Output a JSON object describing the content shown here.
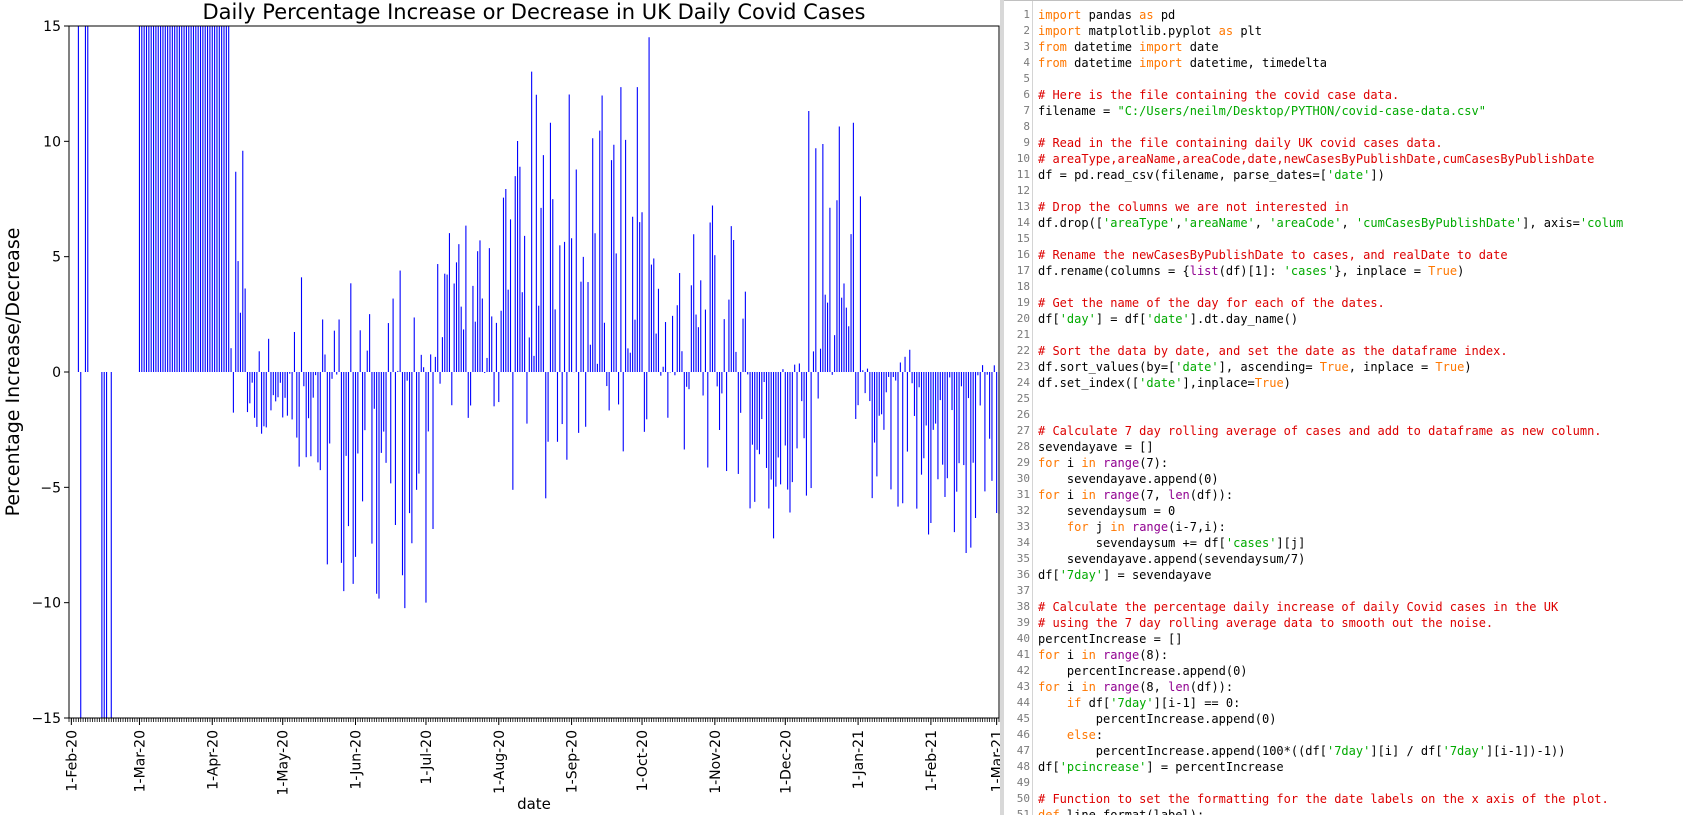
{
  "plot_window": {
    "chart_data": {
      "type": "bar",
      "title": "Daily Percentage Increase or Decrease in UK Daily Covid Cases",
      "xlabel": "date",
      "ylabel": "Percentage Increase/Decrease",
      "ylim": [
        -15,
        15
      ],
      "yticks": [
        -15,
        -10,
        -5,
        0,
        5,
        10,
        15
      ],
      "ytick_labels": [
        "−15",
        "−10",
        "−5",
        "0",
        "5",
        "10",
        "15"
      ],
      "xtick_labels": [
        "1-Feb-20",
        "1-Mar-20",
        "1-Apr-20",
        "1-May-20",
        "1-Jun-20",
        "1-Jul-20",
        "1-Aug-20",
        "1-Sep-20",
        "1-Oct-20",
        "1-Nov-20",
        "1-Dec-20",
        "1-Jan-21",
        "1-Feb-21",
        "1-Mar-21"
      ],
      "grid": false,
      "bar_color": "#0000ff",
      "date_start": "2020-01-31",
      "date_end": "2021-03-02",
      "spikes": [
        {
          "date": "2020-02-04",
          "value": 15
        },
        {
          "date": "2020-02-05",
          "value": -15
        },
        {
          "date": "2020-02-07",
          "value": 15
        },
        {
          "date": "2020-02-08",
          "value": 15
        },
        {
          "date": "2020-02-14",
          "value": -15
        },
        {
          "date": "2020-02-15",
          "value": -15
        },
        {
          "date": "2020-02-16",
          "value": -15
        },
        {
          "date": "2020-02-18",
          "value": -15
        }
      ],
      "segments": [
        {
          "start": "2020-02-20",
          "end": "2020-02-29",
          "amp": 0,
          "base": 0,
          "amp_alt": 0
        },
        {
          "start": "2020-03-01",
          "end": "2020-04-08",
          "amp": 15,
          "base": 15,
          "amp_alt": 0
        },
        {
          "start": "2020-04-09",
          "end": "2020-04-15",
          "amp": 10,
          "base": 4,
          "amp_alt": 0
        },
        {
          "start": "2020-04-16",
          "end": "2020-05-05",
          "amp": 3,
          "base": -0.5,
          "amp_alt": 1.5
        },
        {
          "start": "2020-05-06",
          "end": "2020-05-15",
          "amp": 6,
          "base": 0,
          "amp_alt": 2
        },
        {
          "start": "2020-05-16",
          "end": "2020-07-05",
          "amp": 9,
          "base": -3.5,
          "amp_alt": 1.5
        },
        {
          "start": "2020-07-06",
          "end": "2020-07-31",
          "amp": 5.5,
          "base": 2,
          "amp_alt": 1
        },
        {
          "start": "2020-08-01",
          "end": "2020-09-25",
          "amp": 12,
          "base": 3.5,
          "amp_alt": 1
        },
        {
          "start": "2020-09-26",
          "end": "2020-10-05",
          "amp": 15,
          "base": 7,
          "amp_alt": -9
        },
        {
          "start": "2020-10-06",
          "end": "2020-11-15",
          "amp": 7.5,
          "base": 1,
          "amp_alt": 1
        },
        {
          "start": "2020-11-16",
          "end": "2020-12-10",
          "amp": 6.5,
          "base": -3.5,
          "amp_alt": 2
        },
        {
          "start": "2020-12-11",
          "end": "2021-01-02",
          "amp": 10,
          "base": 4,
          "amp_alt": -2
        },
        {
          "start": "2021-01-03",
          "end": "2021-02-27",
          "amp": 6.5,
          "base": -4,
          "amp_alt": 1.2
        },
        {
          "start": "2021-02-28",
          "end": "2021-03-02",
          "amp": 8.5,
          "base": -5,
          "amp_alt": 0
        }
      ]
    }
  },
  "editor": {
    "lines": [
      [
        {
          "t": "import",
          "c": "kw"
        },
        {
          "t": " pandas ",
          "c": "pl"
        },
        {
          "t": "as",
          "c": "kw"
        },
        {
          "t": " pd",
          "c": "pl"
        }
      ],
      [
        {
          "t": "import",
          "c": "kw"
        },
        {
          "t": " matplotlib.pyplot ",
          "c": "pl"
        },
        {
          "t": "as",
          "c": "kw"
        },
        {
          "t": " plt",
          "c": "pl"
        }
      ],
      [
        {
          "t": "from",
          "c": "kw"
        },
        {
          "t": " datetime ",
          "c": "pl"
        },
        {
          "t": "import",
          "c": "kw"
        },
        {
          "t": " date",
          "c": "pl"
        }
      ],
      [
        {
          "t": "from",
          "c": "kw"
        },
        {
          "t": " datetime ",
          "c": "pl"
        },
        {
          "t": "import",
          "c": "kw"
        },
        {
          "t": " datetime, timedelta",
          "c": "pl"
        }
      ],
      [],
      [
        {
          "t": "# Here is the file containing the covid case data.",
          "c": "cm"
        }
      ],
      [
        {
          "t": "filename = ",
          "c": "pl"
        },
        {
          "t": "\"C:/Users/neilm/Desktop/PYTHON/covid-case-data.csv\"",
          "c": "st"
        }
      ],
      [],
      [
        {
          "t": "# Read in the file containing daily UK covid cases data.",
          "c": "cm"
        }
      ],
      [
        {
          "t": "# areaType,areaName,areaCode,date,newCasesByPublishDate,cumCasesByPublishDate",
          "c": "cm"
        }
      ],
      [
        {
          "t": "df = pd.read_csv(filename, parse_dates=[",
          "c": "pl"
        },
        {
          "t": "'date'",
          "c": "st"
        },
        {
          "t": "])",
          "c": "pl"
        }
      ],
      [],
      [
        {
          "t": "# Drop the columns we are not interested in",
          "c": "cm"
        }
      ],
      [
        {
          "t": "df.drop([",
          "c": "pl"
        },
        {
          "t": "'areaType'",
          "c": "st"
        },
        {
          "t": ",",
          "c": "pl"
        },
        {
          "t": "'areaName'",
          "c": "st"
        },
        {
          "t": ", ",
          "c": "pl"
        },
        {
          "t": "'areaCode'",
          "c": "st"
        },
        {
          "t": ", ",
          "c": "pl"
        },
        {
          "t": "'cumCasesByPublishDate'",
          "c": "st"
        },
        {
          "t": "], axis=",
          "c": "pl"
        },
        {
          "t": "'colum",
          "c": "st"
        }
      ],
      [],
      [
        {
          "t": "# Rename the newCasesByPublishDate to cases, and realDate to date",
          "c": "cm"
        }
      ],
      [
        {
          "t": "df.rename(columns = {",
          "c": "pl"
        },
        {
          "t": "list",
          "c": "bi"
        },
        {
          "t": "(df)[1]: ",
          "c": "pl"
        },
        {
          "t": "'cases'",
          "c": "st"
        },
        {
          "t": "}, inplace = ",
          "c": "pl"
        },
        {
          "t": "True",
          "c": "kw"
        },
        {
          "t": ")",
          "c": "pl"
        }
      ],
      [],
      [
        {
          "t": "# Get the name of the day for each of the dates.",
          "c": "cm"
        }
      ],
      [
        {
          "t": "df[",
          "c": "pl"
        },
        {
          "t": "'day'",
          "c": "st"
        },
        {
          "t": "] = df[",
          "c": "pl"
        },
        {
          "t": "'date'",
          "c": "st"
        },
        {
          "t": "].dt.day_name()",
          "c": "pl"
        }
      ],
      [],
      [
        {
          "t": "# Sort the data by date, and set the date as the dataframe index.",
          "c": "cm"
        }
      ],
      [
        {
          "t": "df.sort_values(by=[",
          "c": "pl"
        },
        {
          "t": "'date'",
          "c": "st"
        },
        {
          "t": "], ascending= ",
          "c": "pl"
        },
        {
          "t": "True",
          "c": "kw"
        },
        {
          "t": ", inplace = ",
          "c": "pl"
        },
        {
          "t": "True",
          "c": "kw"
        },
        {
          "t": ")",
          "c": "pl"
        }
      ],
      [
        {
          "t": "df.set_index([",
          "c": "pl"
        },
        {
          "t": "'date'",
          "c": "st"
        },
        {
          "t": "],inplace=",
          "c": "pl"
        },
        {
          "t": "True",
          "c": "kw"
        },
        {
          "t": ")",
          "c": "pl"
        }
      ],
      [],
      [],
      [
        {
          "t": "# Calculate 7 day rolling average of cases and add to dataframe as new column.",
          "c": "cm"
        }
      ],
      [
        {
          "t": "sevendayave = []",
          "c": "pl"
        }
      ],
      [
        {
          "t": "for",
          "c": "kw"
        },
        {
          "t": " i ",
          "c": "pl"
        },
        {
          "t": "in",
          "c": "kw"
        },
        {
          "t": " ",
          "c": "pl"
        },
        {
          "t": "range",
          "c": "bi"
        },
        {
          "t": "(7):",
          "c": "pl"
        }
      ],
      [
        {
          "t": "    sevendayave.append(0)",
          "c": "pl"
        }
      ],
      [
        {
          "t": "for",
          "c": "kw"
        },
        {
          "t": " i ",
          "c": "pl"
        },
        {
          "t": "in",
          "c": "kw"
        },
        {
          "t": " ",
          "c": "pl"
        },
        {
          "t": "range",
          "c": "bi"
        },
        {
          "t": "(7, ",
          "c": "pl"
        },
        {
          "t": "len",
          "c": "bi"
        },
        {
          "t": "(df)):",
          "c": "pl"
        }
      ],
      [
        {
          "t": "    sevendaysum = 0",
          "c": "pl"
        }
      ],
      [
        {
          "t": "    ",
          "c": "pl"
        },
        {
          "t": "for",
          "c": "kw"
        },
        {
          "t": " j ",
          "c": "pl"
        },
        {
          "t": "in",
          "c": "kw"
        },
        {
          "t": " ",
          "c": "pl"
        },
        {
          "t": "range",
          "c": "bi"
        },
        {
          "t": "(i-7,i):",
          "c": "pl"
        }
      ],
      [
        {
          "t": "        sevendaysum += df[",
          "c": "pl"
        },
        {
          "t": "'cases'",
          "c": "st"
        },
        {
          "t": "][j]",
          "c": "pl"
        }
      ],
      [
        {
          "t": "    sevendayave.append(sevendaysum/7)",
          "c": "pl"
        }
      ],
      [
        {
          "t": "df[",
          "c": "pl"
        },
        {
          "t": "'7day'",
          "c": "st"
        },
        {
          "t": "] = sevendayave",
          "c": "pl"
        }
      ],
      [],
      [
        {
          "t": "# Calculate the percentage daily increase of daily Covid cases in the UK",
          "c": "cm"
        }
      ],
      [
        {
          "t": "# using the 7 day rolling average data to smooth out the noise.",
          "c": "cm"
        }
      ],
      [
        {
          "t": "percentIncrease = []",
          "c": "pl"
        }
      ],
      [
        {
          "t": "for",
          "c": "kw"
        },
        {
          "t": " i ",
          "c": "pl"
        },
        {
          "t": "in",
          "c": "kw"
        },
        {
          "t": " ",
          "c": "pl"
        },
        {
          "t": "range",
          "c": "bi"
        },
        {
          "t": "(8):",
          "c": "pl"
        }
      ],
      [
        {
          "t": "    percentIncrease.append(0)",
          "c": "pl"
        }
      ],
      [
        {
          "t": "for",
          "c": "kw"
        },
        {
          "t": " i ",
          "c": "pl"
        },
        {
          "t": "in",
          "c": "kw"
        },
        {
          "t": " ",
          "c": "pl"
        },
        {
          "t": "range",
          "c": "bi"
        },
        {
          "t": "(8, ",
          "c": "pl"
        },
        {
          "t": "len",
          "c": "bi"
        },
        {
          "t": "(df)):",
          "c": "pl"
        }
      ],
      [
        {
          "t": "    ",
          "c": "pl"
        },
        {
          "t": "if",
          "c": "kw"
        },
        {
          "t": " df[",
          "c": "pl"
        },
        {
          "t": "'7day'",
          "c": "st"
        },
        {
          "t": "][i-1] == 0:",
          "c": "pl"
        }
      ],
      [
        {
          "t": "        percentIncrease.append(0)",
          "c": "pl"
        }
      ],
      [
        {
          "t": "    ",
          "c": "pl"
        },
        {
          "t": "else",
          "c": "kw"
        },
        {
          "t": ":",
          "c": "pl"
        }
      ],
      [
        {
          "t": "        percentIncrease.append(100*((df[",
          "c": "pl"
        },
        {
          "t": "'7day'",
          "c": "st"
        },
        {
          "t": "][i] / df[",
          "c": "pl"
        },
        {
          "t": "'7day'",
          "c": "st"
        },
        {
          "t": "][i-1])-1))",
          "c": "pl"
        }
      ],
      [
        {
          "t": "df[",
          "c": "pl"
        },
        {
          "t": "'pcincrease'",
          "c": "st"
        },
        {
          "t": "] = percentIncrease",
          "c": "pl"
        }
      ],
      [],
      [
        {
          "t": "# Function to set the formatting for the date labels on the x axis of the plot.",
          "c": "cm"
        }
      ],
      [
        {
          "t": "def",
          "c": "kw"
        },
        {
          "t": " line_format(label):",
          "c": "pl"
        }
      ]
    ]
  }
}
